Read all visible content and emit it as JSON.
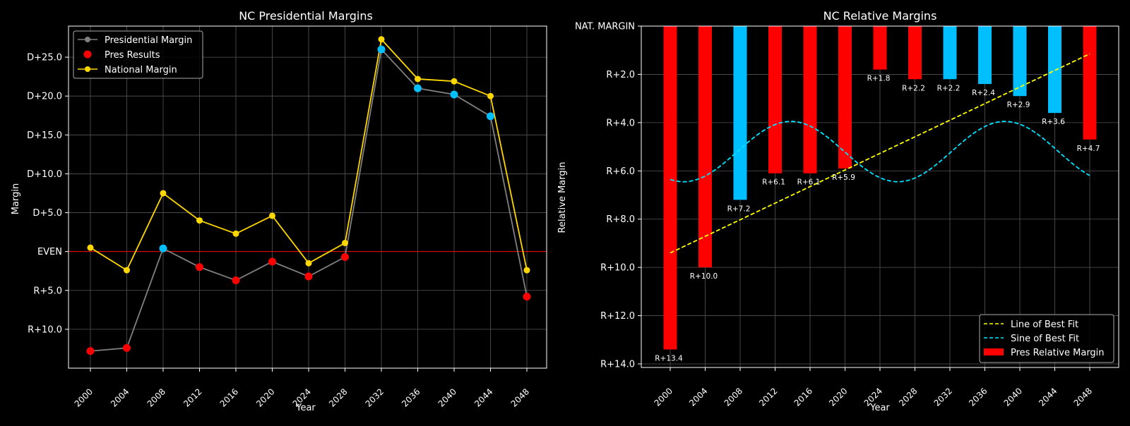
{
  "colors": {
    "background": "#000000",
    "pres_line": "#808080",
    "national": "#FFD700",
    "red": "#FF0000",
    "blue": "#00BFFF",
    "even_line": "#FF0000",
    "fit_line": "#FFFF00",
    "sine_line": "#00E5FF",
    "grid": "#555555"
  },
  "chart_data": [
    {
      "type": "line",
      "title": "NC Presidential Margins",
      "xlabel": "Year",
      "ylabel": "Margin",
      "x": [
        2000,
        2004,
        2008,
        2012,
        2016,
        2020,
        2024,
        2028,
        2032,
        2036,
        2040,
        2044,
        2048
      ],
      "ylim": [
        -15,
        29
      ],
      "y_ticks": [
        -10,
        -5,
        0,
        5,
        10,
        15,
        20,
        25
      ],
      "y_tick_labels": [
        "R+10.0",
        "R+5.0",
        "EVEN",
        "D+5.0",
        "D+10.0",
        "D+15.0",
        "D+20.0",
        "D+25.0"
      ],
      "grid": true,
      "legend_position": "top-left",
      "reference_line": 0,
      "series": [
        {
          "name": "Presidential Margin",
          "values": [
            -12.8,
            -12.4,
            0.4,
            -2.0,
            -3.7,
            -1.3,
            -3.2,
            -0.7,
            26.0,
            21.0,
            20.2,
            17.4,
            -5.8
          ],
          "color": "#808080"
        },
        {
          "name": "Pres Results",
          "type": "scatter",
          "values": [
            -12.8,
            -12.4,
            0.4,
            -2.0,
            -3.7,
            -1.3,
            -3.2,
            -0.7,
            26.0,
            21.0,
            20.2,
            17.4,
            -5.8
          ],
          "winner": [
            "R",
            "R",
            "D",
            "R",
            "R",
            "R",
            "R",
            "R",
            "D",
            "D",
            "D",
            "D",
            "R"
          ]
        },
        {
          "name": "National Margin",
          "values": [
            0.5,
            -2.4,
            7.5,
            4.0,
            2.3,
            4.6,
            -1.5,
            1.1,
            27.3,
            22.2,
            21.9,
            20.0,
            -2.4
          ],
          "color": "#FFD700"
        }
      ]
    },
    {
      "type": "bar",
      "title": "NC Relative Margins",
      "xlabel": "Year",
      "ylabel": "Relative Margin",
      "categories": [
        "2000",
        "2004",
        "2008",
        "2012",
        "2016",
        "2020",
        "2024",
        "2028",
        "2032",
        "2036",
        "2040",
        "2044",
        "2048"
      ],
      "values": [
        13.4,
        10.0,
        7.2,
        6.1,
        6.1,
        5.9,
        1.8,
        2.2,
        2.2,
        2.4,
        2.9,
        3.6,
        4.7
      ],
      "data_labels": [
        "R+13.4",
        "R+10.0",
        "R+7.2",
        "R+6.1",
        "R+6.1",
        "R+5.9",
        "R+1.8",
        "R+2.2",
        "R+2.2",
        "R+2.4",
        "R+2.9",
        "R+3.6",
        "R+4.7"
      ],
      "bar_colors": [
        "#FF0000",
        "#FF0000",
        "#00BFFF",
        "#FF0000",
        "#FF0000",
        "#FF0000",
        "#FF0000",
        "#FF0000",
        "#00BFFF",
        "#00BFFF",
        "#00BFFF",
        "#00BFFF",
        "#FF0000"
      ],
      "ylim": [
        0,
        14
      ],
      "y_inverted": true,
      "y_ticks": [
        0,
        2,
        4,
        6,
        8,
        10,
        12,
        14
      ],
      "y_tick_labels": [
        "NAT. MARGIN",
        "R+2.0",
        "R+4.0",
        "R+6.0",
        "R+8.0",
        "R+10.0",
        "R+12.0",
        "R+14.0"
      ],
      "grid": true,
      "legend_position": "bottom-right",
      "fit_line": {
        "name": "Line of Best Fit",
        "start": 9.4,
        "end": 1.15
      },
      "sine_fit": {
        "name": "Sine of Best Fit",
        "center": 5.2,
        "amplitude": 1.25,
        "period_years": 24.5,
        "peak_year": 13.8
      },
      "bar_legend": "Pres Relative Margin"
    }
  ]
}
